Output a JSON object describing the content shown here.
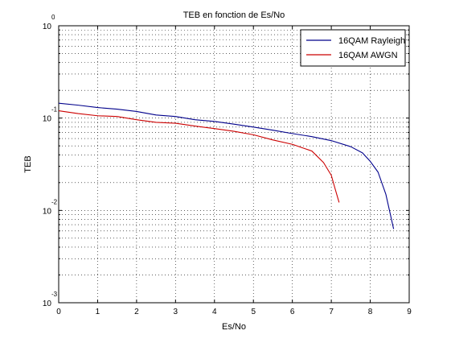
{
  "chart_data": {
    "type": "line",
    "title": "TEB en fonction de Es/No",
    "xlabel": "Es/No",
    "ylabel": "TEB",
    "xlim": [
      0,
      9
    ],
    "ylim": [
      0.001,
      1
    ],
    "yscale": "log",
    "grid": true,
    "legend_position": "top-right",
    "x_ticks": [
      {
        "label": "0",
        "value": 0
      },
      {
        "label": "1",
        "value": 1
      },
      {
        "label": "2",
        "value": 2
      },
      {
        "label": "3",
        "value": 3
      },
      {
        "label": "4",
        "value": 4
      },
      {
        "label": "5",
        "value": 5
      },
      {
        "label": "6",
        "value": 6
      },
      {
        "label": "7",
        "value": 7
      },
      {
        "label": "8",
        "value": 8
      },
      {
        "label": "9",
        "value": 9
      }
    ],
    "y_ticks": [
      {
        "base": "10",
        "exp": "0",
        "value": 1
      },
      {
        "base": "10",
        "exp": "-1",
        "value": 0.1
      },
      {
        "base": "10",
        "exp": "-2",
        "value": 0.01
      },
      {
        "base": "10",
        "exp": "-3",
        "value": 0.001
      }
    ],
    "series": [
      {
        "name": "16QAM Rayleigh",
        "color": "#00008b",
        "x": [
          0,
          0.5,
          1,
          1.5,
          2,
          2.5,
          3,
          3.5,
          4,
          4.5,
          5,
          5.5,
          6,
          6.5,
          7,
          7.5,
          7.8,
          8,
          8.2,
          8.4,
          8.6
        ],
        "y": [
          0.145,
          0.138,
          0.13,
          0.125,
          0.118,
          0.108,
          0.104,
          0.096,
          0.092,
          0.086,
          0.08,
          0.074,
          0.068,
          0.063,
          0.057,
          0.049,
          0.042,
          0.034,
          0.026,
          0.015,
          0.0063
        ]
      },
      {
        "name": "16QAM AWGN",
        "color": "#cc0000",
        "x": [
          0,
          0.5,
          1,
          1.5,
          2,
          2.5,
          3,
          3.5,
          4,
          4.5,
          5,
          5.5,
          6,
          6.5,
          6.8,
          7,
          7.1,
          7.2
        ],
        "y": [
          0.12,
          0.112,
          0.106,
          0.104,
          0.096,
          0.09,
          0.088,
          0.082,
          0.077,
          0.072,
          0.066,
          0.058,
          0.052,
          0.044,
          0.033,
          0.024,
          0.017,
          0.0122
        ]
      }
    ]
  }
}
